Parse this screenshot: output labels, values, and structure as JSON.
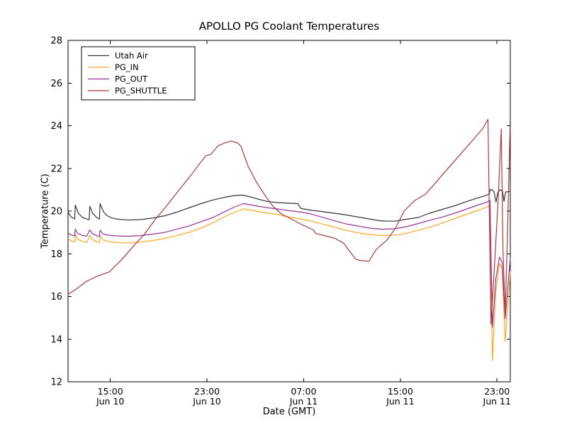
{
  "chart_data": {
    "type": "line",
    "title": "APOLLO PG Coolant Temperatures",
    "xlabel": "Date (GMT)",
    "ylabel": "Temperature (C)",
    "x_unit": "hours since Jun 10 00:00 GMT",
    "xlim": [
      11.5,
      48.1
    ],
    "ylim": [
      12,
      28
    ],
    "grid": false,
    "legend_position": "upper left",
    "yticks": [
      12,
      14,
      16,
      18,
      20,
      22,
      24,
      26,
      28
    ],
    "xticks": [
      {
        "t": 15,
        "time": "15:00",
        "date": "Jun 10"
      },
      {
        "t": 23,
        "time": "23:00",
        "date": "Jun 10"
      },
      {
        "t": 31,
        "time": "07:00",
        "date": "Jun 11"
      },
      {
        "t": 39,
        "time": "15:00",
        "date": "Jun 11"
      },
      {
        "t": 47,
        "time": "23:00",
        "date": "Jun 11"
      }
    ],
    "series": [
      {
        "name": "Utah Air",
        "color": "#333333",
        "points": [
          [
            11.5,
            19.95
          ],
          [
            11.75,
            19.72
          ],
          [
            12.05,
            19.63
          ],
          [
            12.1,
            20.28
          ],
          [
            12.35,
            19.9
          ],
          [
            12.7,
            19.7
          ],
          [
            13.1,
            19.62
          ],
          [
            13.25,
            19.6
          ],
          [
            13.3,
            20.22
          ],
          [
            13.55,
            19.88
          ],
          [
            13.9,
            19.68
          ],
          [
            14.1,
            19.62
          ],
          [
            14.15,
            20.35
          ],
          [
            14.45,
            19.95
          ],
          [
            14.75,
            19.78
          ],
          [
            15.1,
            19.68
          ],
          [
            15.6,
            19.62
          ],
          [
            16.5,
            19.58
          ],
          [
            17.5,
            19.6
          ],
          [
            18.5,
            19.67
          ],
          [
            19.5,
            19.78
          ],
          [
            20.5,
            19.95
          ],
          [
            21.5,
            20.15
          ],
          [
            22.5,
            20.35
          ],
          [
            23.5,
            20.52
          ],
          [
            24.5,
            20.65
          ],
          [
            25.3,
            20.73
          ],
          [
            25.9,
            20.75
          ],
          [
            26.5,
            20.68
          ],
          [
            27.3,
            20.55
          ],
          [
            28.0,
            20.45
          ],
          [
            28.8,
            20.4
          ],
          [
            30.5,
            20.35
          ],
          [
            30.8,
            20.12
          ],
          [
            31.5,
            20.05
          ],
          [
            32.5,
            19.98
          ],
          [
            33.5,
            19.9
          ],
          [
            34.5,
            19.82
          ],
          [
            35.5,
            19.72
          ],
          [
            36.5,
            19.62
          ],
          [
            37.3,
            19.55
          ],
          [
            38.0,
            19.53
          ],
          [
            38.6,
            19.53
          ],
          [
            39.3,
            19.6
          ],
          [
            40.5,
            19.7
          ],
          [
            41.4,
            19.9
          ],
          [
            42.3,
            20.05
          ],
          [
            43.5,
            20.25
          ],
          [
            44.5,
            20.45
          ],
          [
            45.3,
            20.6
          ],
          [
            45.9,
            20.7
          ],
          [
            46.35,
            20.8
          ],
          [
            46.45,
            21.02
          ],
          [
            46.6,
            21.0
          ],
          [
            46.75,
            20.9
          ],
          [
            46.92,
            20.42
          ],
          [
            47.05,
            20.85
          ],
          [
            47.25,
            21.0
          ],
          [
            47.45,
            20.95
          ],
          [
            47.58,
            20.45
          ],
          [
            47.72,
            20.9
          ],
          [
            48.1,
            20.92
          ]
        ]
      },
      {
        "name": "PG_IN",
        "color": "#ffa51e",
        "points": [
          [
            11.5,
            18.72
          ],
          [
            11.75,
            18.6
          ],
          [
            12.05,
            18.56
          ],
          [
            12.1,
            18.9
          ],
          [
            12.3,
            18.68
          ],
          [
            12.7,
            18.58
          ],
          [
            13.05,
            18.53
          ],
          [
            13.3,
            18.86
          ],
          [
            13.5,
            18.68
          ],
          [
            13.9,
            18.55
          ],
          [
            14.1,
            18.52
          ],
          [
            14.15,
            18.84
          ],
          [
            14.4,
            18.65
          ],
          [
            14.8,
            18.58
          ],
          [
            15.3,
            18.54
          ],
          [
            16.5,
            18.5
          ],
          [
            17.5,
            18.55
          ],
          [
            18.5,
            18.62
          ],
          [
            19.5,
            18.72
          ],
          [
            20.5,
            18.85
          ],
          [
            21.5,
            19.0
          ],
          [
            22.5,
            19.2
          ],
          [
            23.5,
            19.45
          ],
          [
            24.5,
            19.75
          ],
          [
            25.3,
            19.95
          ],
          [
            26.0,
            20.1
          ],
          [
            26.6,
            20.05
          ],
          [
            27.3,
            19.97
          ],
          [
            28.1,
            19.9
          ],
          [
            28.8,
            19.85
          ],
          [
            29.5,
            19.75
          ],
          [
            30.5,
            19.65
          ],
          [
            31.5,
            19.55
          ],
          [
            32.5,
            19.4
          ],
          [
            33.5,
            19.25
          ],
          [
            34.5,
            19.1
          ],
          [
            35.5,
            18.98
          ],
          [
            36.5,
            18.9
          ],
          [
            37.5,
            18.85
          ],
          [
            38.5,
            18.87
          ],
          [
            39.5,
            18.95
          ],
          [
            40.5,
            19.1
          ],
          [
            41.5,
            19.25
          ],
          [
            42.5,
            19.45
          ],
          [
            43.5,
            19.65
          ],
          [
            44.5,
            19.85
          ],
          [
            45.5,
            20.05
          ],
          [
            46.2,
            20.2
          ],
          [
            46.42,
            20.27
          ],
          [
            46.62,
            13.0
          ],
          [
            46.9,
            16.2
          ],
          [
            47.2,
            17.55
          ],
          [
            47.42,
            17.3
          ],
          [
            47.68,
            13.9
          ],
          [
            48.1,
            17.15
          ]
        ]
      },
      {
        "name": "PG_OUT",
        "color": "#993399",
        "points": [
          [
            11.5,
            18.97
          ],
          [
            11.75,
            18.88
          ],
          [
            12.05,
            18.84
          ],
          [
            12.1,
            19.15
          ],
          [
            12.3,
            18.95
          ],
          [
            12.7,
            18.86
          ],
          [
            13.05,
            18.82
          ],
          [
            13.3,
            19.12
          ],
          [
            13.5,
            18.95
          ],
          [
            13.9,
            18.84
          ],
          [
            14.1,
            18.82
          ],
          [
            14.15,
            19.1
          ],
          [
            14.4,
            18.93
          ],
          [
            14.8,
            18.87
          ],
          [
            15.3,
            18.84
          ],
          [
            16.5,
            18.82
          ],
          [
            17.5,
            18.85
          ],
          [
            18.5,
            18.92
          ],
          [
            19.5,
            19.0
          ],
          [
            20.5,
            19.15
          ],
          [
            21.5,
            19.3
          ],
          [
            22.5,
            19.5
          ],
          [
            23.5,
            19.7
          ],
          [
            24.5,
            19.98
          ],
          [
            25.3,
            20.2
          ],
          [
            26.0,
            20.35
          ],
          [
            26.6,
            20.3
          ],
          [
            27.3,
            20.22
          ],
          [
            28.1,
            20.15
          ],
          [
            28.8,
            20.1
          ],
          [
            29.8,
            20.02
          ],
          [
            30.8,
            19.95
          ],
          [
            31.5,
            19.88
          ],
          [
            32.5,
            19.72
          ],
          [
            33.5,
            19.55
          ],
          [
            34.5,
            19.4
          ],
          [
            35.5,
            19.3
          ],
          [
            36.5,
            19.2
          ],
          [
            37.5,
            19.15
          ],
          [
            38.5,
            19.17
          ],
          [
            39.5,
            19.27
          ],
          [
            40.5,
            19.42
          ],
          [
            41.5,
            19.58
          ],
          [
            42.5,
            19.72
          ],
          [
            43.5,
            19.9
          ],
          [
            44.5,
            20.1
          ],
          [
            45.5,
            20.3
          ],
          [
            46.2,
            20.42
          ],
          [
            46.42,
            20.5
          ],
          [
            46.62,
            14.55
          ],
          [
            46.9,
            16.8
          ],
          [
            47.2,
            17.85
          ],
          [
            47.42,
            17.6
          ],
          [
            47.68,
            14.95
          ],
          [
            48.1,
            17.8
          ]
        ]
      },
      {
        "name": "PG_SHUTTLE",
        "color": "#aa3939",
        "points": [
          [
            11.5,
            16.1
          ],
          [
            12.2,
            16.35
          ],
          [
            13.0,
            16.7
          ],
          [
            13.9,
            16.95
          ],
          [
            14.9,
            17.15
          ],
          [
            15.9,
            17.7
          ],
          [
            16.9,
            18.35
          ],
          [
            17.8,
            18.9
          ],
          [
            18.7,
            19.6
          ],
          [
            19.6,
            20.2
          ],
          [
            20.7,
            21.0
          ],
          [
            21.7,
            21.7
          ],
          [
            22.5,
            22.3
          ],
          [
            22.9,
            22.6
          ],
          [
            23.3,
            22.65
          ],
          [
            23.9,
            23.05
          ],
          [
            24.5,
            23.2
          ],
          [
            25.0,
            23.28
          ],
          [
            25.5,
            23.2
          ],
          [
            25.8,
            23.05
          ],
          [
            26.4,
            22.1
          ],
          [
            27.1,
            21.35
          ],
          [
            27.9,
            20.65
          ],
          [
            28.5,
            20.2
          ],
          [
            29.2,
            19.85
          ],
          [
            29.9,
            19.65
          ],
          [
            30.9,
            19.35
          ],
          [
            31.8,
            19.12
          ],
          [
            32.0,
            18.95
          ],
          [
            32.9,
            18.82
          ],
          [
            33.6,
            18.72
          ],
          [
            34.3,
            18.5
          ],
          [
            34.9,
            18.05
          ],
          [
            35.3,
            17.75
          ],
          [
            35.7,
            17.68
          ],
          [
            36.4,
            17.65
          ],
          [
            37.0,
            18.2
          ],
          [
            37.9,
            18.65
          ],
          [
            38.6,
            19.2
          ],
          [
            39.3,
            20.0
          ],
          [
            40.2,
            20.5
          ],
          [
            41.1,
            20.8
          ],
          [
            42.1,
            21.45
          ],
          [
            43.1,
            22.1
          ],
          [
            44.1,
            22.75
          ],
          [
            45.1,
            23.4
          ],
          [
            45.8,
            23.85
          ],
          [
            46.25,
            24.3
          ],
          [
            46.5,
            14.7
          ],
          [
            46.8,
            17.5
          ],
          [
            47.1,
            20.6
          ],
          [
            47.35,
            23.85
          ],
          [
            47.5,
            18.0
          ],
          [
            47.68,
            15.2
          ],
          [
            47.85,
            18.5
          ],
          [
            48.08,
            23.9
          ]
        ]
      }
    ]
  }
}
